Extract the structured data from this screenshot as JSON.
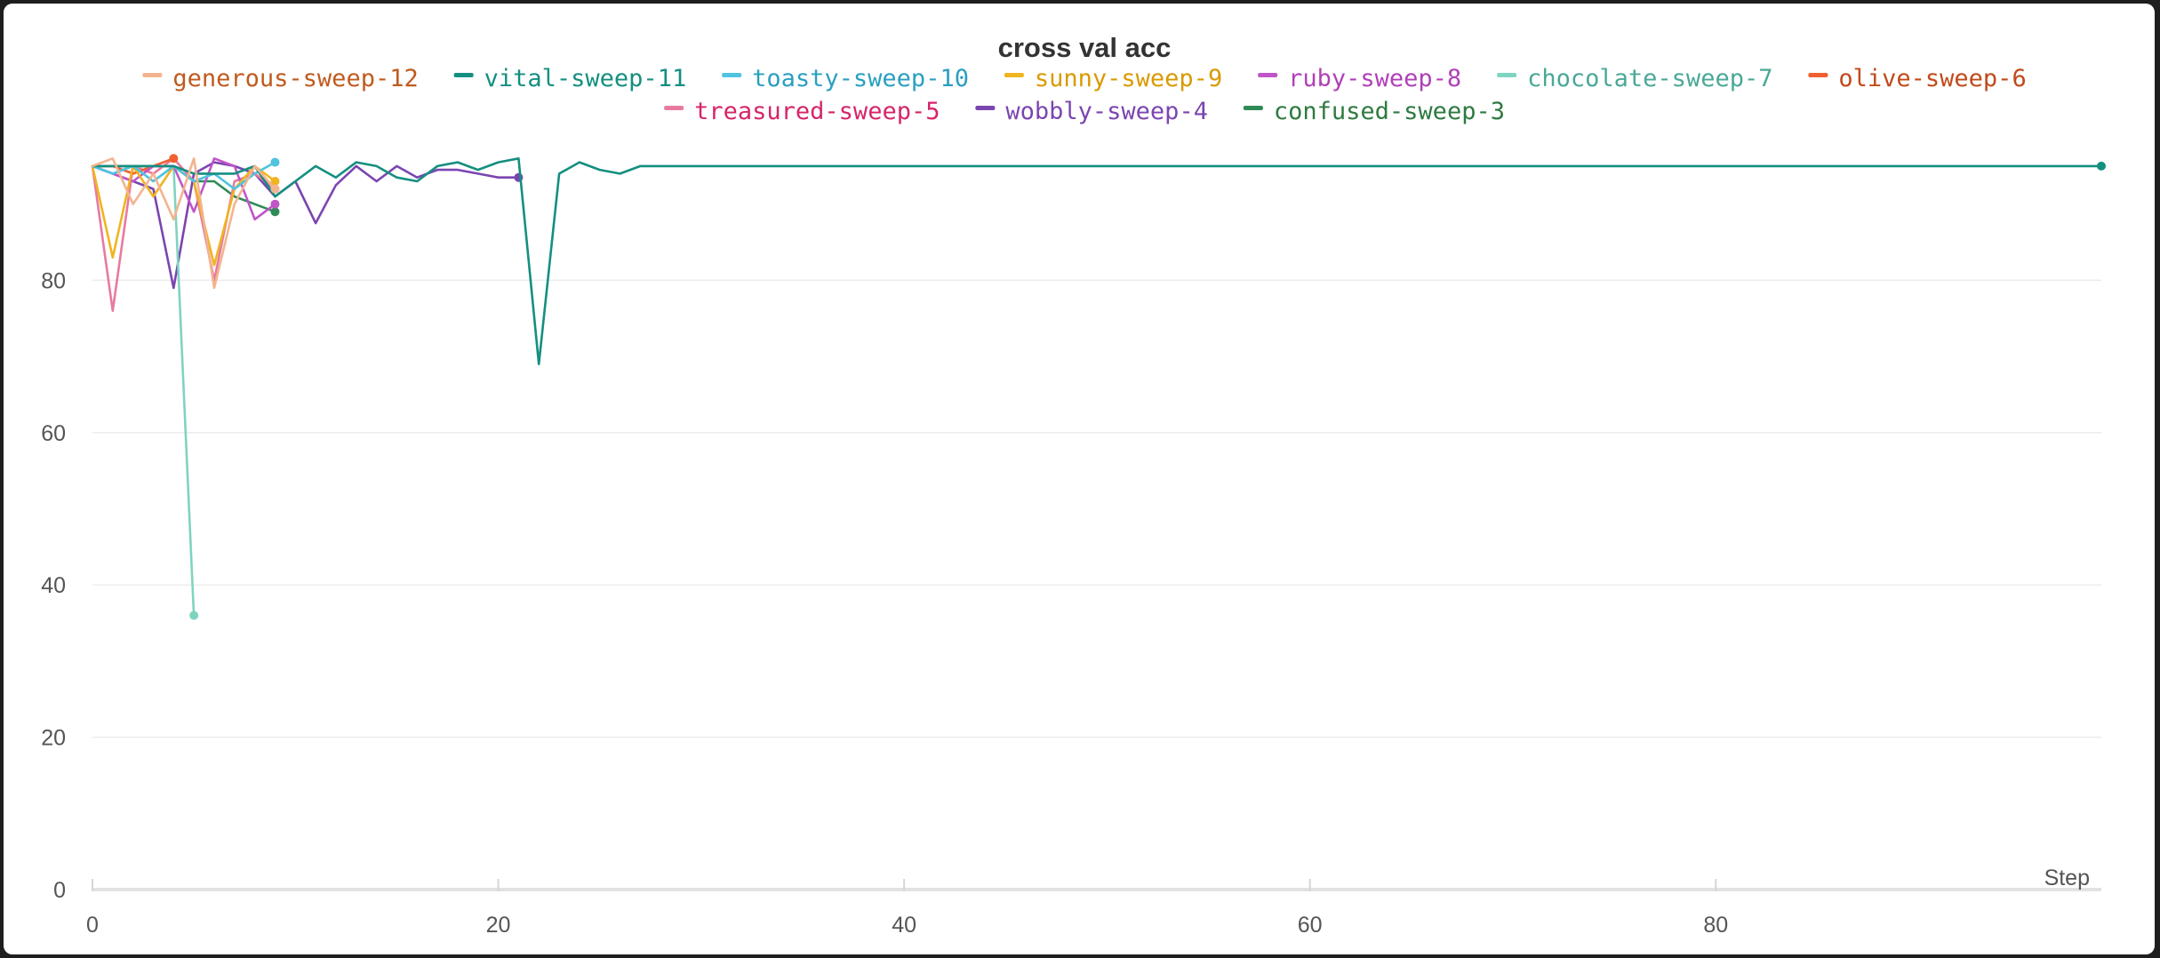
{
  "chart_data": {
    "type": "line",
    "title": "cross val acc",
    "xlabel": "Step",
    "ylabel": "",
    "xlim": [
      0,
      99
    ],
    "ylim": [
      0,
      100
    ],
    "xticks": [
      0,
      20,
      40,
      60,
      80
    ],
    "yticks": [
      0,
      20,
      40,
      60,
      80
    ],
    "grid": true,
    "legend_position": "top",
    "series": [
      {
        "name": "generous-sweep-12",
        "color": "#f2b48f",
        "label_color": "#c05a1e",
        "x": [
          0,
          1,
          2,
          3,
          4,
          5,
          6,
          7,
          8,
          9
        ],
        "y": [
          95,
          96,
          90,
          94,
          88,
          96,
          79,
          90,
          95,
          92
        ]
      },
      {
        "name": "vital-sweep-11",
        "color": "#148f80",
        "label_color": "#148f80",
        "x": [
          0,
          1,
          2,
          3,
          4,
          5,
          6,
          7,
          8,
          9,
          10,
          11,
          12,
          13,
          14,
          15,
          16,
          17,
          18,
          19,
          20,
          21,
          22,
          23,
          24,
          25,
          26,
          27,
          28,
          29,
          30,
          99
        ],
        "y": [
          95,
          95,
          95,
          95,
          95,
          94,
          94,
          94,
          95,
          91,
          93,
          95,
          93.5,
          95.5,
          95,
          93.5,
          93,
          95,
          95.5,
          94.5,
          95.5,
          96,
          69,
          94,
          95.5,
          94.5,
          94,
          95,
          95,
          95,
          95,
          95
        ]
      },
      {
        "name": "toasty-sweep-10",
        "color": "#4fc3e0",
        "label_color": "#2a9fc0",
        "x": [
          0,
          1,
          2,
          3,
          4,
          5,
          6,
          7,
          8,
          9
        ],
        "y": [
          95,
          94,
          95,
          93,
          95,
          93,
          94,
          92,
          94,
          95.5
        ]
      },
      {
        "name": "sunny-sweep-9",
        "color": "#f0b420",
        "label_color": "#d99a00",
        "x": [
          0,
          1,
          2,
          3,
          4,
          5,
          6,
          7,
          8,
          9
        ],
        "y": [
          95,
          83,
          95,
          91,
          95,
          93,
          82,
          92,
          95,
          93
        ]
      },
      {
        "name": "ruby-sweep-8",
        "color": "#c055c8",
        "label_color": "#b040b8",
        "x": [
          0,
          1,
          2,
          3,
          4,
          5,
          6,
          7,
          8,
          9
        ],
        "y": [
          95,
          94,
          93,
          95,
          95,
          89,
          96,
          95,
          88,
          90
        ]
      },
      {
        "name": "chocolate-sweep-7",
        "color": "#7fd4c0",
        "label_color": "#4aa898",
        "x": [
          0,
          1,
          2,
          3,
          4,
          5
        ],
        "y": [
          95,
          94,
          95,
          93,
          95,
          36
        ]
      },
      {
        "name": "olive-sweep-6",
        "color": "#f06030",
        "label_color": "#c04a1a",
        "x": [
          0,
          1,
          2,
          3,
          4
        ],
        "y": [
          95,
          95,
          94,
          95,
          96
        ]
      },
      {
        "name": "treasured-sweep-5",
        "color": "#e87aa0",
        "label_color": "#d6246a",
        "x": [
          0,
          1,
          2,
          3,
          4,
          5,
          6,
          7,
          8,
          9
        ],
        "y": [
          95,
          76,
          95,
          94,
          96,
          93,
          80,
          93,
          94,
          92
        ]
      },
      {
        "name": "wobbly-sweep-4",
        "color": "#7b45b0",
        "label_color": "#7b45b0",
        "x": [
          0,
          1,
          2,
          3,
          4,
          5,
          6,
          7,
          8,
          9,
          10,
          11,
          12,
          13,
          14,
          15,
          16,
          17,
          18,
          19,
          20,
          21
        ],
        "y": [
          95,
          94,
          93,
          92,
          79,
          94,
          95.5,
          95,
          94,
          91,
          93,
          87.5,
          92.5,
          95,
          93,
          95,
          93.5,
          94.5,
          94.5,
          94,
          93.5,
          93.5
        ]
      },
      {
        "name": "confused-sweep-3",
        "color": "#2e8b57",
        "label_color": "#2e7a40",
        "x": [
          0,
          1,
          2,
          3,
          4,
          5,
          6,
          7,
          8,
          9
        ],
        "y": [
          95,
          95,
          95,
          95,
          95,
          93,
          93,
          91,
          90,
          89
        ]
      }
    ]
  }
}
